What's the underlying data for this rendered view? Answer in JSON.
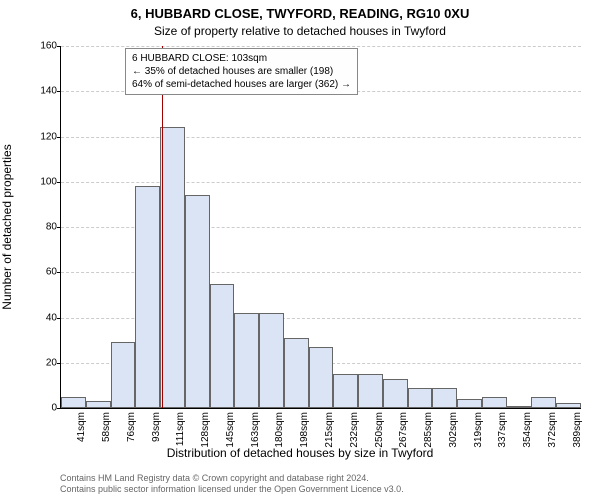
{
  "titles": {
    "main": "6, HUBBARD CLOSE, TWYFORD, READING, RG10 0XU",
    "sub": "Size of property relative to detached houses in Twyford"
  },
  "annotation": {
    "line1": "6 HUBBARD CLOSE: 103sqm",
    "line2": "← 35% of detached houses are smaller (198)",
    "line3": "64% of semi-detached houses are larger (362) →"
  },
  "axes": {
    "ylabel": "Number of detached properties",
    "xlabel": "Distribution of detached houses by size in Twyford",
    "ylim_max": 160,
    "ytick_step": 20,
    "yticks": [
      0,
      20,
      40,
      60,
      80,
      100,
      120,
      140,
      160
    ]
  },
  "histogram": {
    "type": "histogram",
    "bar_color": "#dbe4f5",
    "bar_border": "#666666",
    "divider_color": "#a00000",
    "divider_x_value": 103,
    "background_color": "#ffffff",
    "grid_color": "#cccccc",
    "categories": [
      "41sqm",
      "58sqm",
      "76sqm",
      "93sqm",
      "111sqm",
      "128sqm",
      "145sqm",
      "163sqm",
      "180sqm",
      "198sqm",
      "215sqm",
      "232sqm",
      "250sqm",
      "267sqm",
      "285sqm",
      "302sqm",
      "319sqm",
      "337sqm",
      "354sqm",
      "372sqm",
      "389sqm"
    ],
    "values": [
      5,
      3,
      29,
      98,
      124,
      94,
      55,
      42,
      42,
      31,
      27,
      15,
      15,
      13,
      9,
      9,
      4,
      5,
      0,
      5,
      2
    ]
  },
  "footer": {
    "line1": "Contains HM Land Registry data © Crown copyright and database right 2024.",
    "line2": "Contains public sector information licensed under the Open Government Licence v3.0."
  }
}
